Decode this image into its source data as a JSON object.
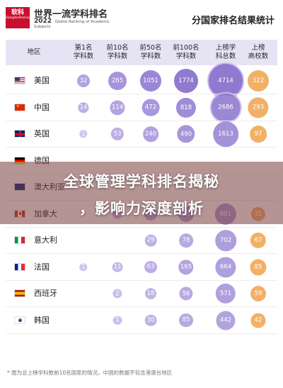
{
  "header": {
    "logo_line1": "软科",
    "logo_line2": "ShanghaiRanking",
    "ranking_title": "世界一流学科排名",
    "ranking_year": "2022",
    "ranking_sub": "Global Ranking of Academic Subjects",
    "page_title": "分国家排名结果统计"
  },
  "overlay": {
    "line1": "全球管理学科排名揭秘",
    "line2": "，影响力深度剖析"
  },
  "footnote": "* 图为总上榜学科数前10名国家的情况，中国的数据不包含港澳台地区",
  "colors": {
    "purple_light": "#b9a9e3",
    "purple_mid": "#9b86d6",
    "purple_dark": "#7d66c4",
    "orange": "#f2b067",
    "header_bg": "#e6e3f4",
    "overlay": "#7a3c3c"
  },
  "chart_data": {
    "type": "table",
    "columns": [
      "地区",
      "第1名\n学科数",
      "前10名\n学科数",
      "前50名\n学科数",
      "前100名\n学科数",
      "上榜学\n科总数",
      "上榜\n高校数"
    ],
    "rows": [
      {
        "country": "美国",
        "flag": "us-flag",
        "values": [
          32,
          265,
          1051,
          1774,
          4714,
          322
        ]
      },
      {
        "country": "中国",
        "flag": "cn-flag",
        "values": [
          14,
          114,
          472,
          818,
          2686,
          293
        ]
      },
      {
        "country": "英国",
        "flag": "gb-flag",
        "values": [
          1,
          53,
          240,
          490,
          1613,
          97
        ]
      },
      {
        "country": "德国",
        "flag": "de-flag",
        "values": [
          null,
          null,
          null,
          null,
          null,
          null
        ]
      },
      {
        "country": "澳大利亚",
        "flag": "au-flag",
        "values": [
          null,
          null,
          null,
          null,
          null,
          null
        ]
      },
      {
        "country": "加拿大",
        "flag": "ca-flag",
        "values": [
          null,
          8,
          89,
          220,
          801,
          31
        ]
      },
      {
        "country": "意大利",
        "flag": "it-flag",
        "values": [
          null,
          null,
          29,
          78,
          702,
          67
        ]
      },
      {
        "country": "法国",
        "flag": "fr-flag",
        "values": [
          1,
          11,
          63,
          165,
          664,
          85
        ]
      },
      {
        "country": "西班牙",
        "flag": "es-flag",
        "values": [
          null,
          2,
          18,
          56,
          571,
          59
        ]
      },
      {
        "country": "韩国",
        "flag": "kr-flag",
        "values": [
          null,
          1,
          30,
          85,
          442,
          42
        ]
      }
    ]
  }
}
